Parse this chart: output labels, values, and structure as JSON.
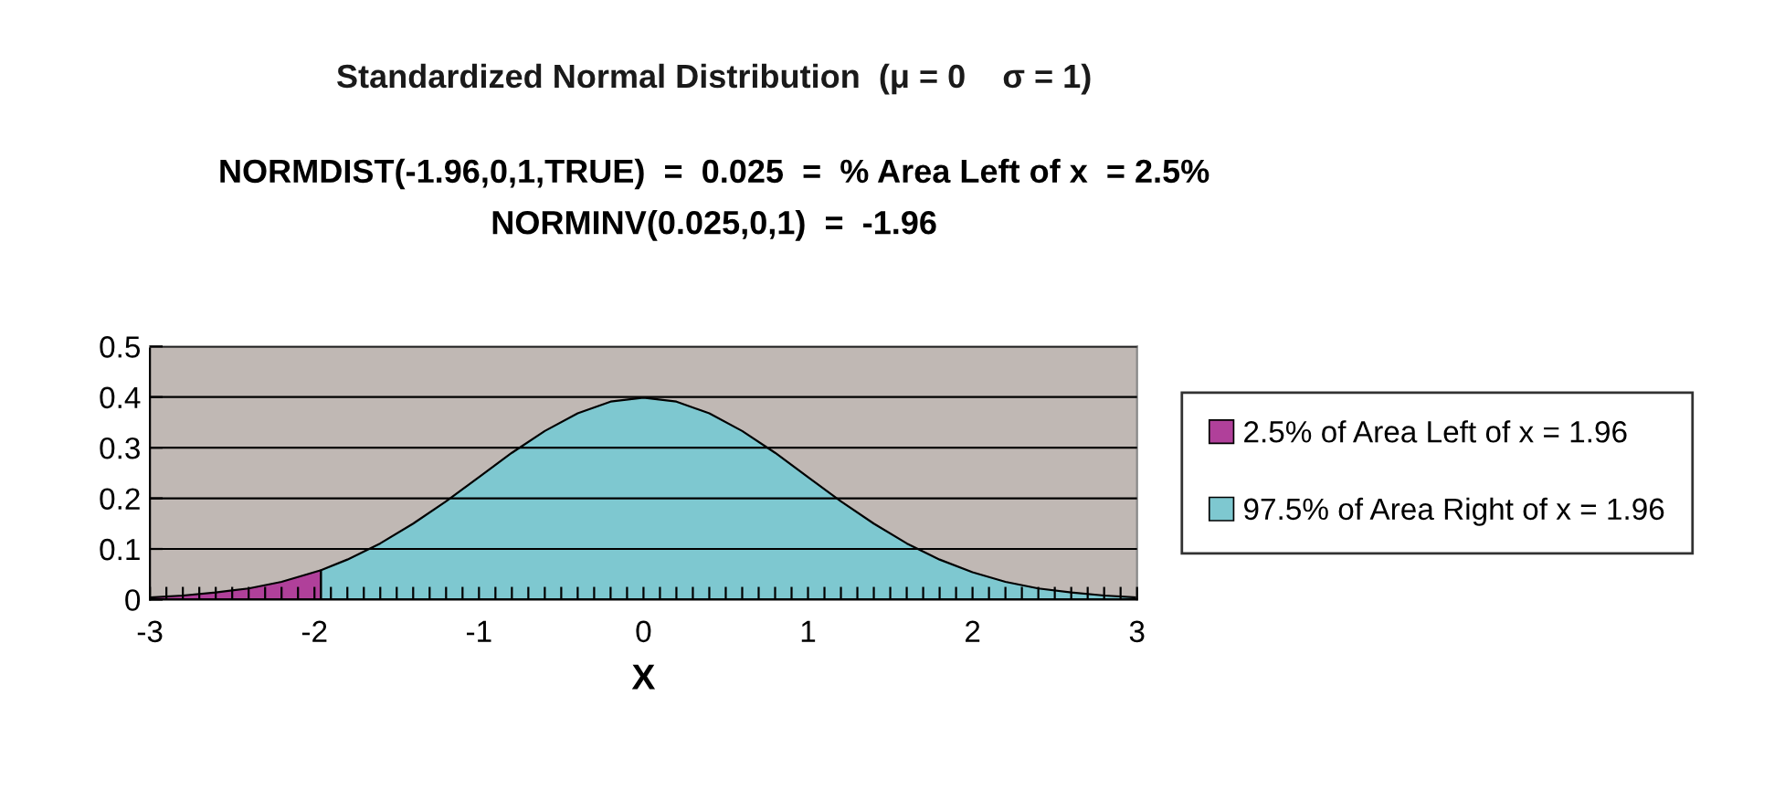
{
  "chart_data": {
    "type": "area",
    "title": "Standardized Normal Distribution  (μ = 0    σ = 1)",
    "subtitle": "NORMDIST(-1.96,0,1,TRUE)  =  0.025  =  % Area Left of x  = 2.5%",
    "annotations": [
      "NORMINV(0.025,0,1)  =  -1.96"
    ],
    "xlabel": "X",
    "series": [
      {
        "name": "2.5% of Area Left of x = 1.96",
        "color": "#b0409a",
        "x": [
          -3,
          -2.8,
          -2.6,
          -2.4,
          -2.2,
          -1.96
        ],
        "values": [
          0.004,
          0.008,
          0.014,
          0.022,
          0.035,
          0.058
        ]
      },
      {
        "name": "97.5% of Area Right of x = 1.96",
        "color": "#7ec8d0",
        "x": [
          -1.96,
          -1.8,
          -1.6,
          -1.4,
          -1.2,
          -1,
          -0.8,
          -0.6,
          -0.4,
          -0.2,
          0,
          0.2,
          0.4,
          0.6,
          0.8,
          1,
          1.2,
          1.4,
          1.6,
          1.8,
          2,
          2.2,
          2.4,
          2.6,
          2.8,
          3
        ],
        "values": [
          0.058,
          0.079,
          0.111,
          0.15,
          0.194,
          0.242,
          0.29,
          0.333,
          0.368,
          0.391,
          0.399,
          0.391,
          0.368,
          0.333,
          0.29,
          0.242,
          0.194,
          0.15,
          0.111,
          0.079,
          0.054,
          0.035,
          0.022,
          0.014,
          0.008,
          0.004
        ]
      }
    ],
    "xlim": [
      -3,
      3
    ],
    "xticks": [
      -3,
      {
        "value": -2.9,
        "label": null
      },
      {
        "value": -2.8,
        "label": null
      },
      {
        "value": -2.7,
        "label": null
      },
      {
        "value": -2.6,
        "label": null
      },
      {
        "value": -2.5,
        "label": null
      },
      {
        "value": -2.4,
        "label": null
      },
      {
        "value": -2.3,
        "label": null
      },
      {
        "value": -2.2,
        "label": null
      },
      {
        "value": -2.1,
        "label": null
      },
      -2,
      {
        "value": -1.9,
        "label": null
      },
      {
        "value": -1.8,
        "label": null
      },
      {
        "value": -1.7,
        "label": null
      },
      {
        "value": -1.6,
        "label": null
      },
      {
        "value": -1.5,
        "label": null
      },
      {
        "value": -1.4,
        "label": null
      },
      {
        "value": -1.3,
        "label": null
      },
      {
        "value": -1.2,
        "label": null
      },
      {
        "value": -1.1,
        "label": null
      },
      -1,
      {
        "value": -0.9,
        "label": null
      },
      {
        "value": -0.8,
        "label": null
      },
      {
        "value": -0.7,
        "label": null
      },
      {
        "value": -0.6,
        "label": null
      },
      {
        "value": -0.5,
        "label": null
      },
      {
        "value": -0.4,
        "label": null
      },
      {
        "value": -0.3,
        "label": null
      },
      {
        "value": -0.2,
        "label": null
      },
      {
        "value": -0.1,
        "label": null
      },
      0,
      {
        "value": 0.1,
        "label": null
      },
      {
        "value": 0.2,
        "label": null
      },
      {
        "value": 0.3,
        "label": null
      },
      {
        "value": 0.4,
        "label": null
      },
      {
        "value": 0.5,
        "label": null
      },
      {
        "value": 0.6,
        "label": null
      },
      {
        "value": 0.7,
        "label": null
      },
      {
        "value": 0.8,
        "label": null
      },
      {
        "value": 0.9,
        "label": null
      },
      1,
      {
        "value": 1.1,
        "label": null
      },
      {
        "value": 1.2,
        "label": null
      },
      {
        "value": 1.3,
        "label": null
      },
      {
        "value": 1.4,
        "label": null
      },
      {
        "value": 1.5,
        "label": null
      },
      {
        "value": 1.6,
        "label": null
      },
      {
        "value": 1.7,
        "label": null
      },
      {
        "value": 1.8,
        "label": null
      },
      {
        "value": 1.9,
        "label": null
      },
      2,
      {
        "value": 2.1,
        "label": null
      },
      {
        "value": 2.2,
        "label": null
      },
      {
        "value": 2.3,
        "label": null
      },
      {
        "value": 2.4,
        "label": null
      },
      {
        "value": 2.5,
        "label": null
      },
      {
        "value": 2.6,
        "label": null
      },
      {
        "value": 2.7,
        "label": null
      },
      {
        "value": 2.8,
        "label": null
      },
      {
        "value": 2.9,
        "label": null
      },
      3
    ],
    "ylim": [
      0,
      0.5
    ],
    "yticks": [
      0,
      0.1,
      0.2,
      0.3,
      0.4,
      0.5
    ],
    "grid": "y",
    "legend": "right"
  }
}
